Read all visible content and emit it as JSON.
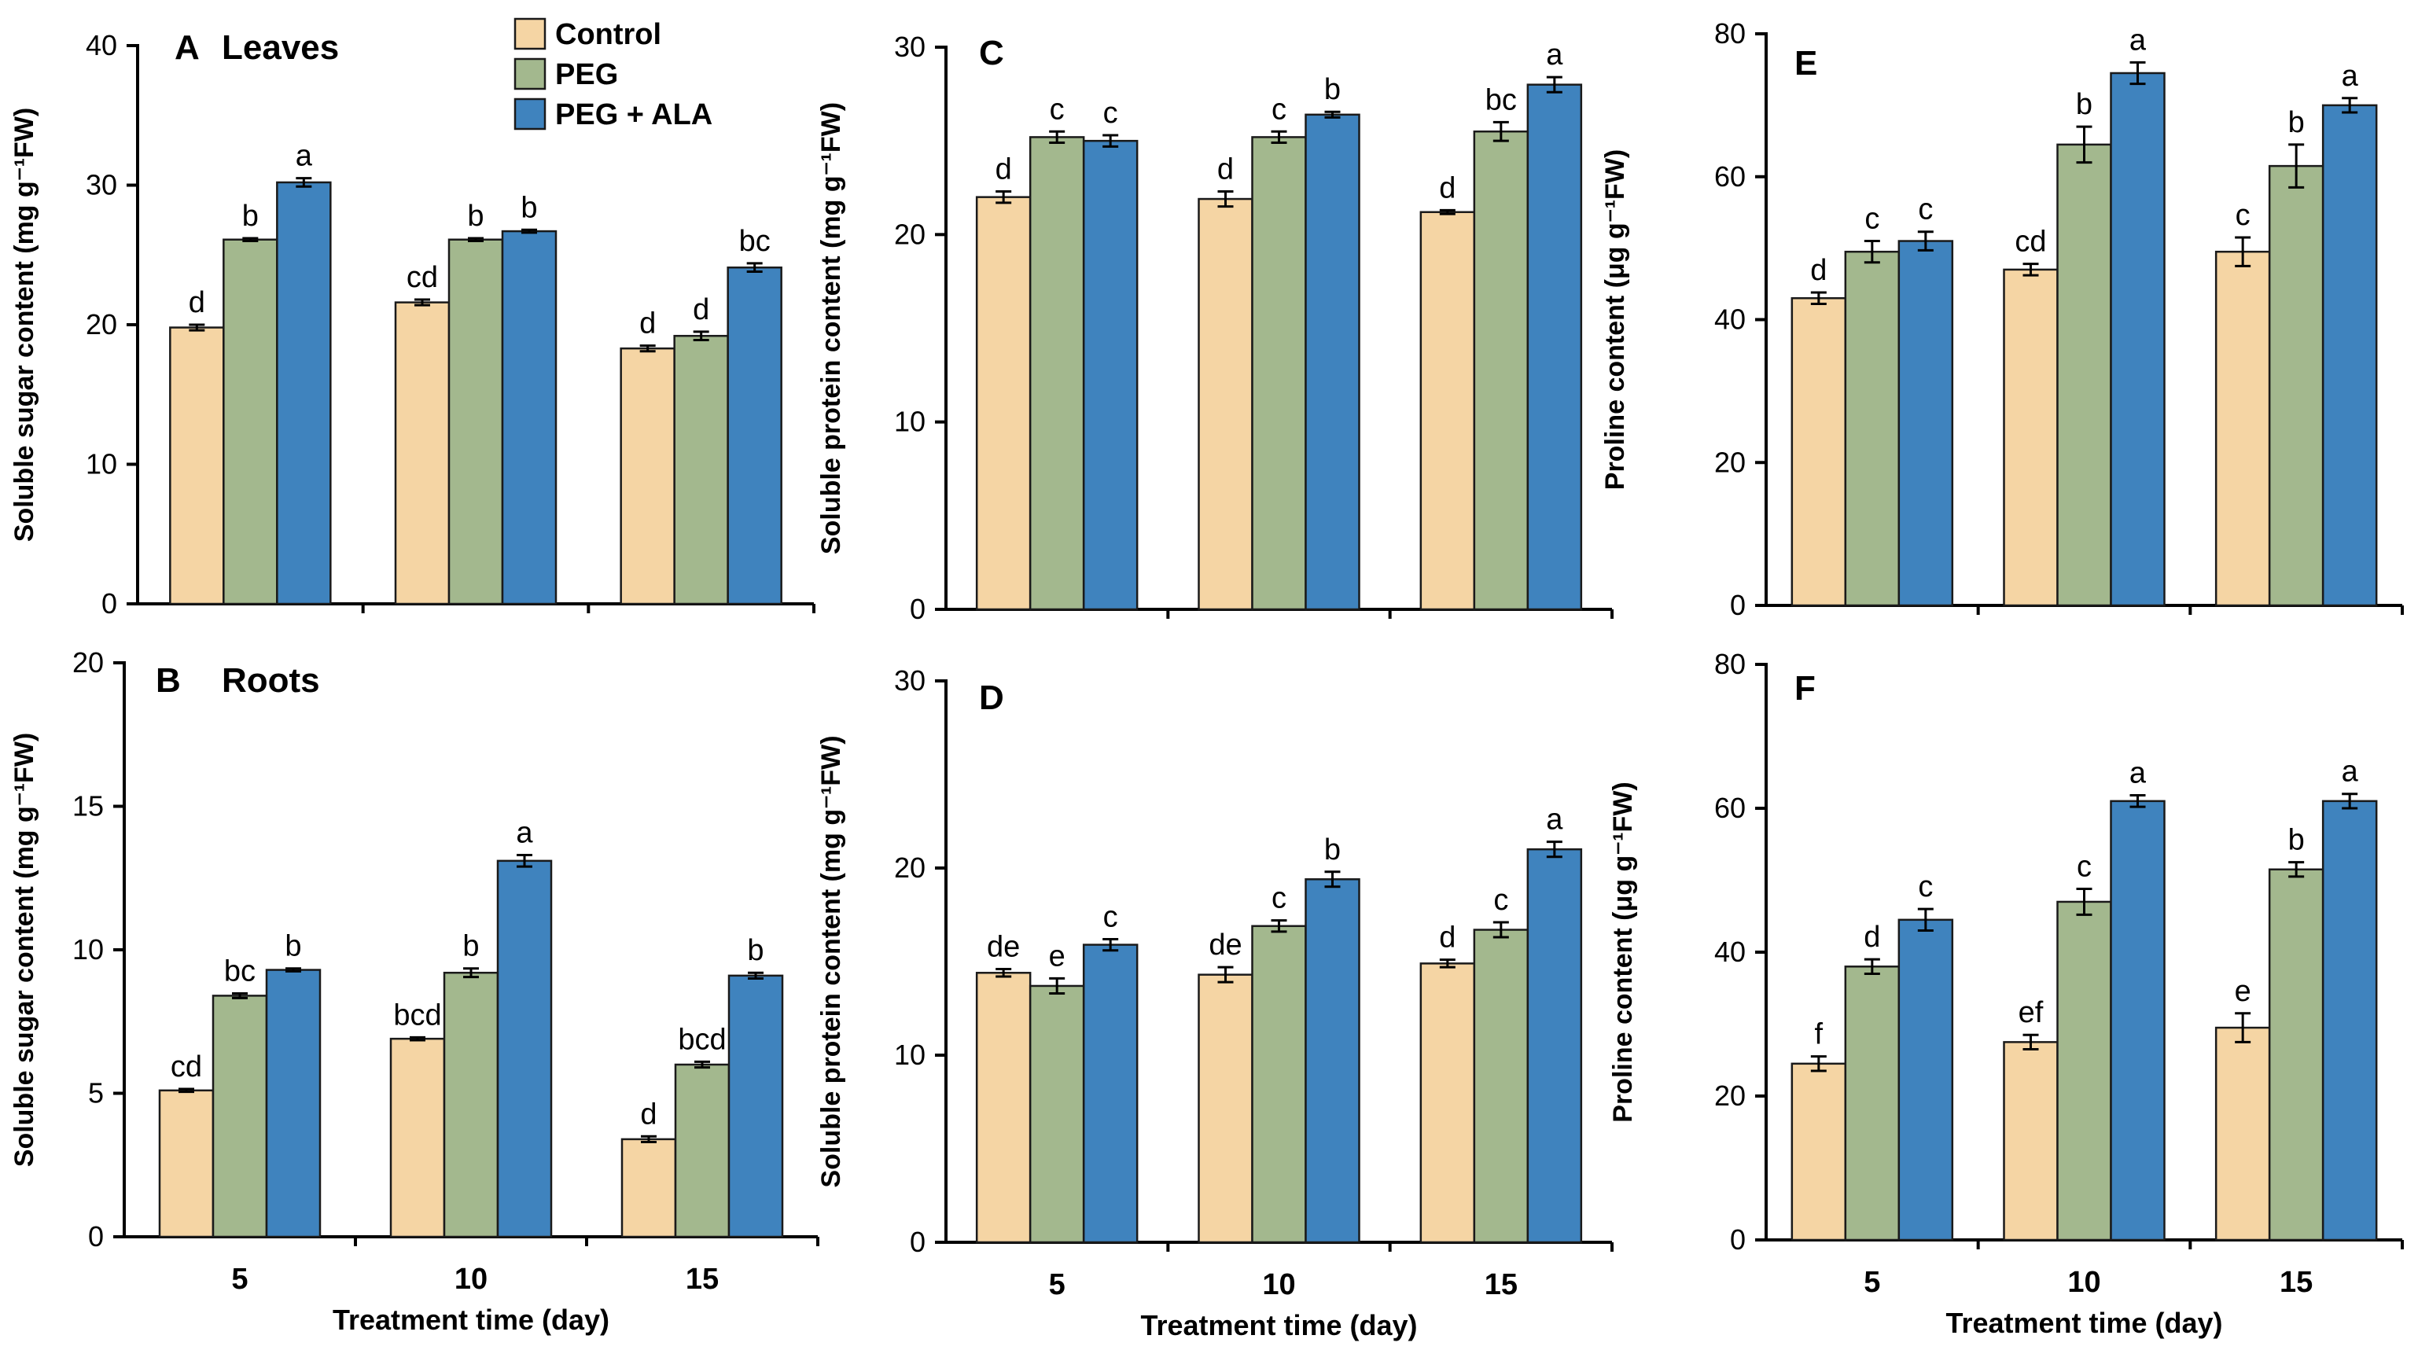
{
  "colors": {
    "control": "#F5D5A4",
    "peg": "#A3B88E",
    "peg_ala": "#3F83BE"
  },
  "legend": [
    {
      "label": "Control",
      "color_key": "control"
    },
    {
      "label": "PEG",
      "color_key": "peg"
    },
    {
      "label": "PEG + ALA",
      "color_key": "peg_ala"
    }
  ],
  "chart_data": [
    {
      "type": "bar",
      "panel": "A",
      "title": "Leaves",
      "ylabel": "Soluble sugar content (mg g⁻¹FW)",
      "xlabel": "",
      "ylim": [
        0,
        40
      ],
      "yticks": [
        "0",
        "10",
        "20",
        "30",
        "40"
      ],
      "categories": [
        "5",
        "10",
        "15"
      ],
      "show_xticks": false,
      "series": [
        {
          "name": "Control",
          "values": [
            19.8,
            21.6,
            18.3
          ],
          "errors": [
            0.2,
            0.2,
            0.2
          ],
          "labels": [
            "d",
            "cd",
            "d"
          ]
        },
        {
          "name": "PEG",
          "values": [
            26.1,
            26.1,
            19.2
          ],
          "errors": [
            0.1,
            0.1,
            0.3
          ],
          "labels": [
            "b",
            "b",
            "d"
          ]
        },
        {
          "name": "PEG + ALA",
          "values": [
            30.2,
            26.7,
            24.1
          ],
          "errors": [
            0.3,
            0.1,
            0.3
          ],
          "labels": [
            "a",
            "b",
            "bc"
          ]
        }
      ]
    },
    {
      "type": "bar",
      "panel": "B",
      "title": "Roots",
      "ylabel": "Soluble sugar content (mg g⁻¹FW)",
      "xlabel": "Treatment time (day)",
      "ylim": [
        0,
        20
      ],
      "yticks": [
        "0",
        "5",
        "10",
        "15",
        "20"
      ],
      "categories": [
        "5",
        "10",
        "15"
      ],
      "show_xticks": true,
      "series": [
        {
          "name": "Control",
          "values": [
            5.1,
            6.9,
            3.4
          ],
          "errors": [
            0.05,
            0.05,
            0.1
          ],
          "labels": [
            "cd",
            "bcd",
            "d"
          ]
        },
        {
          "name": "PEG",
          "values": [
            8.4,
            9.2,
            6.0
          ],
          "errors": [
            0.08,
            0.15,
            0.1
          ],
          "labels": [
            "bc",
            "b",
            "bcd"
          ]
        },
        {
          "name": "PEG + ALA",
          "values": [
            9.3,
            13.1,
            9.1
          ],
          "errors": [
            0.05,
            0.2,
            0.1
          ],
          "labels": [
            "b",
            "a",
            "b"
          ]
        }
      ]
    },
    {
      "type": "bar",
      "panel": "C",
      "title": "",
      "ylabel": "Soluble protein content (mg g⁻¹FW)",
      "xlabel": "",
      "ylim": [
        0,
        30
      ],
      "yticks": [
        "0",
        "10",
        "20",
        "30"
      ],
      "categories": [
        "5",
        "10",
        "15"
      ],
      "show_xticks": false,
      "series": [
        {
          "name": "Control",
          "values": [
            22.0,
            21.9,
            21.2
          ],
          "errors": [
            0.3,
            0.4,
            0.1
          ],
          "labels": [
            "d",
            "d",
            "d"
          ]
        },
        {
          "name": "PEG",
          "values": [
            25.2,
            25.2,
            25.5
          ],
          "errors": [
            0.3,
            0.3,
            0.5
          ],
          "labels": [
            "c",
            "c",
            "bc"
          ]
        },
        {
          "name": "PEG + ALA",
          "values": [
            25.0,
            26.4,
            28.0
          ],
          "errors": [
            0.3,
            0.15,
            0.4
          ],
          "labels": [
            "c",
            "b",
            "a"
          ]
        }
      ]
    },
    {
      "type": "bar",
      "panel": "D",
      "title": "",
      "ylabel": "Soluble protein content (mg g⁻¹FW)",
      "xlabel": "Treatment time (day)",
      "ylim": [
        0,
        30
      ],
      "yticks": [
        "0",
        "10",
        "20",
        "30"
      ],
      "categories": [
        "5",
        "10",
        "15"
      ],
      "show_xticks": true,
      "series": [
        {
          "name": "Control",
          "values": [
            14.4,
            14.3,
            14.9
          ],
          "errors": [
            0.2,
            0.4,
            0.2
          ],
          "labels": [
            "de",
            "de",
            "d"
          ]
        },
        {
          "name": "PEG",
          "values": [
            13.7,
            16.9,
            16.7
          ],
          "errors": [
            0.4,
            0.3,
            0.4
          ],
          "labels": [
            "e",
            "c",
            "c"
          ]
        },
        {
          "name": "PEG + ALA",
          "values": [
            15.9,
            19.4,
            21.0
          ],
          "errors": [
            0.3,
            0.4,
            0.4
          ],
          "labels": [
            "c",
            "b",
            "a"
          ]
        }
      ]
    },
    {
      "type": "bar",
      "panel": "E",
      "title": "",
      "ylabel": "Proline content (μg g⁻¹FW)",
      "xlabel": "",
      "ylim": [
        0,
        80
      ],
      "yticks": [
        "0",
        "20",
        "40",
        "60",
        "80"
      ],
      "categories": [
        "5",
        "10",
        "15"
      ],
      "show_xticks": false,
      "series": [
        {
          "name": "Control",
          "values": [
            43.0,
            47.0,
            49.5
          ],
          "errors": [
            0.8,
            0.8,
            2.0
          ],
          "labels": [
            "d",
            "cd",
            "c"
          ]
        },
        {
          "name": "PEG",
          "values": [
            49.5,
            64.5,
            61.5
          ],
          "errors": [
            1.5,
            2.5,
            3.0
          ],
          "labels": [
            "c",
            "b",
            "b"
          ]
        },
        {
          "name": "PEG + ALA",
          "values": [
            51.0,
            74.5,
            70.0
          ],
          "errors": [
            1.3,
            1.5,
            1.0
          ],
          "labels": [
            "c",
            "a",
            "a"
          ]
        }
      ]
    },
    {
      "type": "bar",
      "panel": "F",
      "title": "",
      "ylabel": "Proline content (μg g⁻¹FW)",
      "xlabel": "Treatment time (day)",
      "ylim": [
        0,
        80
      ],
      "yticks": [
        "0",
        "20",
        "40",
        "60",
        "80"
      ],
      "categories": [
        "5",
        "10",
        "15"
      ],
      "show_xticks": true,
      "series": [
        {
          "name": "Control",
          "values": [
            24.5,
            27.5,
            29.5
          ],
          "errors": [
            1.0,
            1.0,
            2.0
          ],
          "labels": [
            "f",
            "ef",
            "e"
          ]
        },
        {
          "name": "PEG",
          "values": [
            38.0,
            47.0,
            51.5
          ],
          "errors": [
            1.0,
            1.8,
            1.0
          ],
          "labels": [
            "d",
            "c",
            "b"
          ]
        },
        {
          "name": "PEG + ALA",
          "values": [
            44.5,
            61.0,
            61.0
          ],
          "errors": [
            1.5,
            0.8,
            1.0
          ],
          "labels": [
            "c",
            "a",
            "a"
          ]
        }
      ]
    }
  ]
}
